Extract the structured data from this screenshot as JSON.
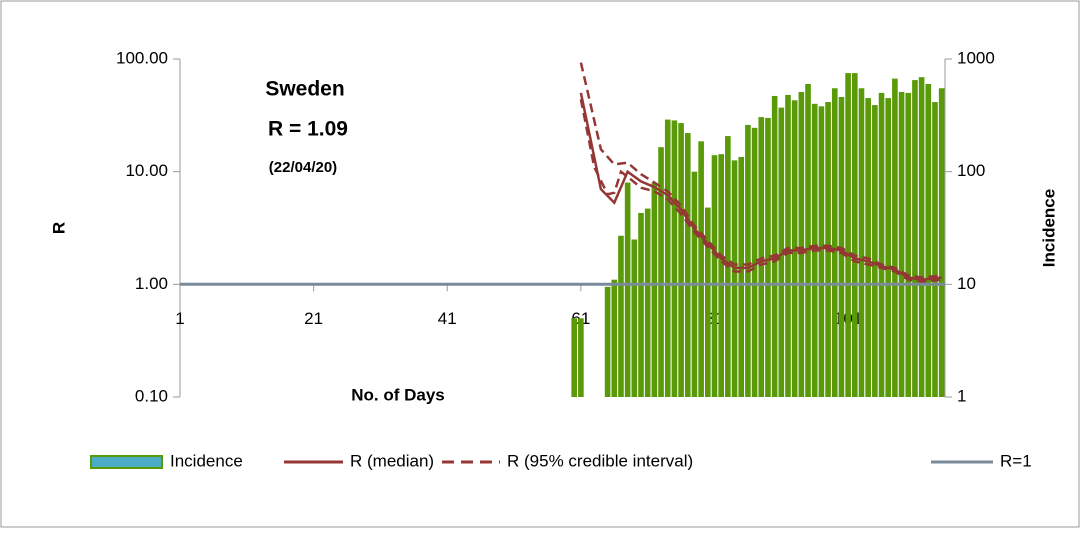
{
  "chart_data": {
    "type": "combo",
    "annotations": [
      "Sweden",
      "R = 1.09",
      "(22/04/20)"
    ],
    "xlabel": "No. of Days",
    "ylabel": "R",
    "y2label": "Incidence",
    "log_scale": true,
    "xlim": [
      1,
      115.5
    ],
    "xticks": [
      1,
      21,
      41,
      61,
      81,
      101
    ],
    "ylim": [
      0.1,
      100
    ],
    "yticks": [
      {
        "value": 100,
        "label": "100.00"
      },
      {
        "value": 10,
        "label": "10.00"
      },
      {
        "value": 1,
        "label": "1.00"
      },
      {
        "value": 0.1,
        "label": "0.10"
      }
    ],
    "y2lim": [
      1,
      1000
    ],
    "y2ticks": [
      1000,
      100,
      10,
      1
    ],
    "series": [
      {
        "name": "Incidence",
        "type": "bar",
        "axis": "y2",
        "color": "#5a9a08",
        "legend_color": "#4bacc6",
        "x": [
          60,
          61,
          65,
          66,
          67,
          68,
          69,
          70,
          71,
          72,
          73,
          74,
          75,
          76,
          77,
          78,
          79,
          80,
          81,
          82,
          83,
          84,
          85,
          86,
          87,
          88,
          89,
          90,
          91,
          92,
          93,
          94,
          95,
          96,
          97,
          98,
          99,
          100,
          101,
          102,
          103,
          104,
          105,
          106,
          107,
          108,
          109,
          110,
          111,
          112,
          113,
          114,
          115
        ],
        "values": [
          5,
          5,
          9.5,
          11,
          27,
          80,
          25,
          43,
          47,
          80,
          165,
          290,
          285,
          270,
          220,
          100,
          186,
          48,
          140,
          143,
          207,
          126,
          135,
          260,
          245,
          305,
          300,
          470,
          370,
          480,
          430,
          510,
          600,
          400,
          380,
          415,
          550,
          460,
          750,
          750,
          550,
          450,
          390,
          500,
          450,
          670,
          510,
          500,
          650,
          690,
          600,
          415,
          550
        ]
      },
      {
        "name": "R (median)",
        "type": "line",
        "color": "#953735",
        "x": [
          61,
          64,
          66,
          68,
          70,
          72,
          74,
          76,
          78,
          80,
          82,
          84,
          86,
          88,
          90,
          92,
          94,
          96,
          98,
          100,
          102,
          104,
          106,
          108,
          110,
          112,
          115
        ],
        "values": [
          50,
          7,
          5.3,
          10,
          8.2,
          7.3,
          6.2,
          4.6,
          3.1,
          2.3,
          1.7,
          1.4,
          1.4,
          1.6,
          1.7,
          2.0,
          2.0,
          2.1,
          2.1,
          2.0,
          1.7,
          1.6,
          1.45,
          1.35,
          1.15,
          1.1,
          1.15
        ]
      },
      {
        "name": "R (95% credible interval)",
        "type": "line",
        "dash": true,
        "color": "#953735",
        "x": [
          61,
          64,
          66,
          68,
          70,
          72,
          74,
          76,
          78,
          80,
          82,
          84,
          86,
          88,
          90,
          92,
          94,
          96,
          98,
          100,
          102,
          104,
          106,
          108,
          110,
          112,
          115
        ],
        "values": [
          93,
          15.8,
          11.6,
          12,
          9.5,
          8.0,
          6.7,
          5.0,
          3.3,
          2.45,
          1.8,
          1.5,
          1.5,
          1.7,
          1.8,
          2.1,
          2.1,
          2.2,
          2.2,
          2.1,
          1.8,
          1.7,
          1.5,
          1.4,
          1.2,
          1.15,
          1.2
        ]
      },
      {
        "type": "line",
        "dash": true,
        "color": "#953735",
        "x": [
          61,
          63,
          65,
          66,
          67,
          68,
          70,
          72,
          74,
          76,
          78,
          80,
          82,
          84,
          86,
          88,
          90,
          92,
          94,
          96,
          98,
          100,
          102,
          104,
          106,
          108,
          110,
          112,
          115
        ],
        "values": [
          44,
          11,
          6.3,
          6.5,
          10,
          9,
          7.2,
          6.7,
          5.7,
          4.2,
          2.9,
          2.15,
          1.6,
          1.3,
          1.3,
          1.5,
          1.6,
          1.9,
          1.9,
          2.0,
          2.0,
          1.9,
          1.6,
          1.5,
          1.4,
          1.3,
          1.1,
          1.05,
          1.1
        ]
      },
      {
        "name": "R=1",
        "type": "line",
        "color": "#7a8a99",
        "width": 3,
        "x": [
          1,
          115.5
        ],
        "values": [
          1,
          1
        ]
      }
    ]
  }
}
